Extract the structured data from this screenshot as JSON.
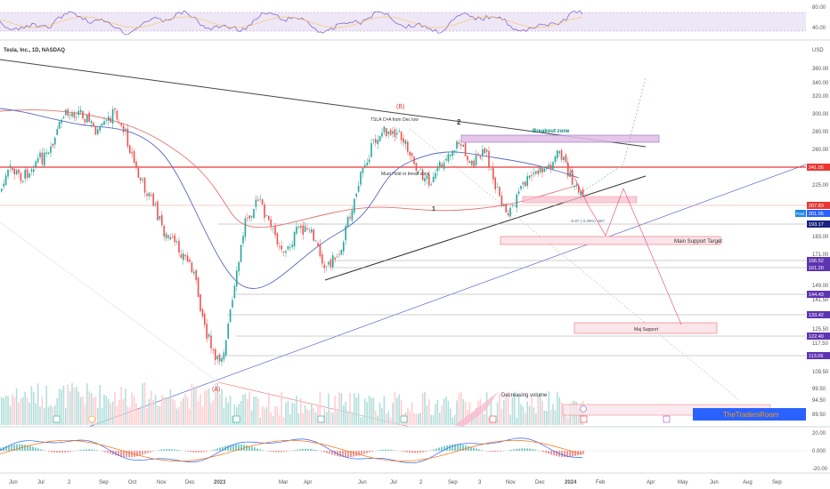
{
  "header": {
    "symbol_title": "Tesla, Inc., 1D, NASDAQ"
  },
  "price_axis": {
    "currency": "USD",
    "ticks": [
      "360.00",
      "340.00",
      "320.00",
      "300.00",
      "280.00",
      "260.00",
      "225.00",
      "183.00",
      "171.00",
      "149.00",
      "141.50",
      "125.50",
      "117.50",
      "109.50",
      "99.50",
      "94.50",
      "89.50"
    ],
    "level_tags": [
      {
        "label": "241.05",
        "color": "#e53935"
      },
      {
        "label": "207.83",
        "color": "#e53935"
      },
      {
        "label": "201.05",
        "color": "#2962ff",
        "prefix": "Post"
      },
      {
        "label": "193.17",
        "color": "#1a237e"
      },
      {
        "label": "166.52",
        "color": "#5e35b1"
      },
      {
        "label": "161.20",
        "color": "#5e35b1"
      },
      {
        "label": "144.43",
        "color": "#5e35b1"
      },
      {
        "label": "133.42",
        "color": "#5e35b1"
      },
      {
        "label": "122.40",
        "color": "#5e35b1"
      },
      {
        "label": "113.06",
        "color": "#5e35b1"
      }
    ]
  },
  "rsi_axis": {
    "ticks": [
      "80.00",
      "40.00"
    ]
  },
  "macd_axis": {
    "ticks": [
      "20.00",
      "0.000",
      "-20.00"
    ]
  },
  "time_axis": {
    "ticks": [
      "Jun",
      "Jul",
      "2",
      "Sep",
      "Oct",
      "Nov",
      "Dec",
      "2023",
      "Mar",
      "Apr",
      "Jun",
      "Jul",
      "2",
      "Sep",
      "3",
      "Nov",
      "Dec",
      "2024",
      "Feb",
      "Apr",
      "May",
      "Jun",
      "Aug",
      "Sep"
    ]
  },
  "annotations": {
    "wave_b": "(B)",
    "wave_a": "(A)",
    "wave_1": "1",
    "wave_2": "2",
    "tsla_note": "TSLA C=A from Dec low",
    "hold_note": "Must Hold or break zone",
    "breakout": "Breakout zone",
    "main_support": "Main Support Target",
    "maj_support": "Maj Support",
    "decreasing_volume": "Decreasing volume",
    "projection": "-6.97 (-3.39%) -697",
    "brand": "TheTradersRoom"
  },
  "colors": {
    "up": "#26a69a",
    "down": "#ef5350",
    "ma_red": "#e57373",
    "ma_blue": "#5c6bc0",
    "zone": "#e1bee7",
    "brand_bg": "#2962ff",
    "brand_text": "#ff9800"
  },
  "chart_data": {
    "type": "candlestick",
    "title": "Tesla, Inc., 1D, NASDAQ",
    "ylabel": "USD",
    "ylim": [
      85,
      370
    ],
    "x": [
      "Jun 2022",
      "Jul 2022",
      "Aug 2022",
      "Sep 2022",
      "Oct 2022",
      "Nov 2022",
      "Dec 2022",
      "Jan 2023",
      "Feb 2023",
      "Mar 2023",
      "Apr 2023",
      "May 2023",
      "Jun 2023",
      "Jul 2023",
      "Aug 2023",
      "Sep 2023",
      "Oct 2023",
      "Nov 2023",
      "Dec 2023",
      "Jan 2024"
    ],
    "series": [
      {
        "values": [
          240,
          235,
          300,
          290,
          225,
          190,
          125,
          160,
          205,
          195,
          160,
          185,
          260,
          285,
          240,
          265,
          215,
          235,
          250,
          201
        ]
      }
    ],
    "levels": [
      241.05,
      207.83,
      201.05,
      193.17,
      166.52,
      161.2,
      144.43,
      133.42,
      122.4,
      113.06
    ]
  }
}
